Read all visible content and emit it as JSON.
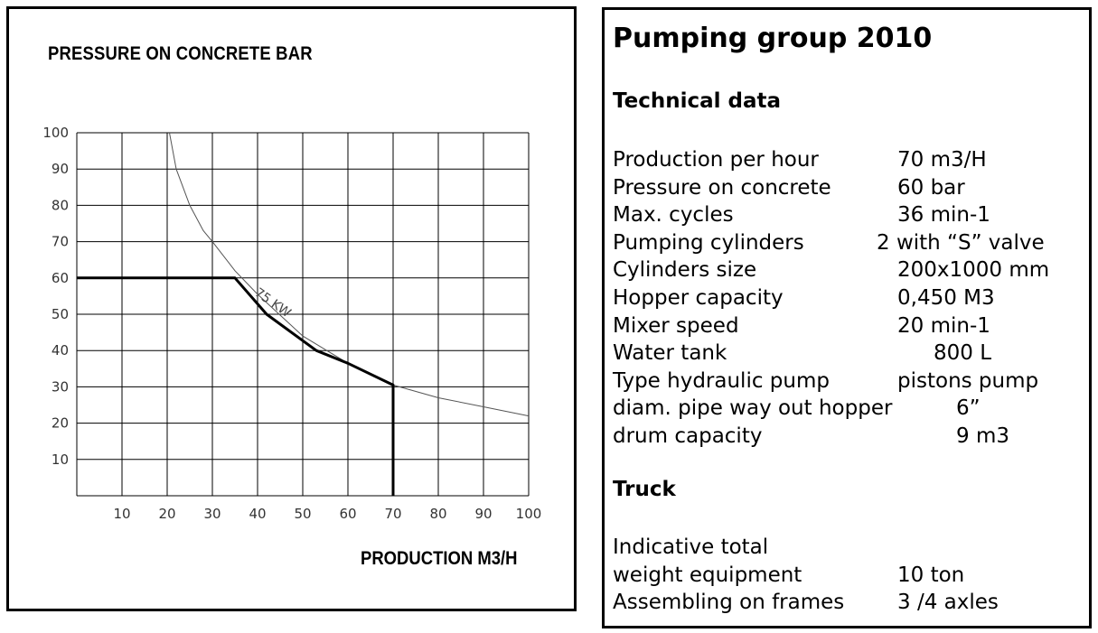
{
  "chart_data": {
    "type": "line",
    "title": "PRESSURE ON CONCRETE BAR",
    "xlabel": "PRODUCTION M3/H",
    "ylabel": "",
    "xlim": [
      0,
      100
    ],
    "ylim": [
      0,
      100
    ],
    "grid": true,
    "x_ticks": [
      "10",
      "20",
      "30",
      "40",
      "50",
      "60",
      "70",
      "80",
      "90",
      "100"
    ],
    "y_ticks": [
      "100",
      "90",
      "80",
      "70",
      "60",
      "50",
      "40",
      "30",
      "20",
      "10"
    ],
    "series": [
      {
        "name": "75 KW",
        "style": "thin-curve",
        "x": [
          20.5,
          22,
          25,
          28,
          30,
          35,
          40,
          50,
          60,
          70,
          80,
          90,
          100
        ],
        "y": [
          100,
          90,
          80,
          73,
          70,
          62,
          55.5,
          44,
          36.5,
          30.5,
          27,
          24.5,
          22
        ]
      },
      {
        "style": "bold-operating-envelope",
        "x": [
          0,
          35,
          42,
          53,
          60,
          70,
          70
        ],
        "y": [
          60,
          60,
          50,
          40,
          36.5,
          30.5,
          0
        ]
      }
    ],
    "annotations": [
      {
        "text": "75 KW",
        "x": 42,
        "y": 52
      }
    ]
  },
  "spec": {
    "title": "Pumping group 2010",
    "tech_heading": "Technical data",
    "rows": [
      {
        "label": "Production per hour",
        "value": "70 m3/H"
      },
      {
        "label": "Pressure on concrete",
        "value": "60 bar"
      },
      {
        "label": "Max. cycles",
        "value": "36 min-1"
      },
      {
        "label": "Pumping cylinders",
        "value": "2 with “S” valve"
      },
      {
        "label": "Cylinders size",
        "value": "200x1000 mm"
      },
      {
        "label": "Hopper capacity",
        "value": "0,450 M3"
      },
      {
        "label": "Mixer speed",
        "value": "20 min-1"
      },
      {
        "label": "Water tank",
        "value": "800  L"
      },
      {
        "label": "Type hydraulic pump",
        "value": "pistons  pump"
      },
      {
        "label": "diam. pipe way out hopper",
        "value": "6”"
      },
      {
        "label": "drum capacity",
        "value": "9 m3"
      }
    ],
    "truck_heading": "Truck",
    "truck_rows": [
      {
        "label": "Indicative total",
        "value": ""
      },
      {
        "label": "weight  equipment",
        "value": "10 ton"
      },
      {
        "label": "Assembling on frames",
        "value": "3 /4 axles"
      }
    ]
  }
}
